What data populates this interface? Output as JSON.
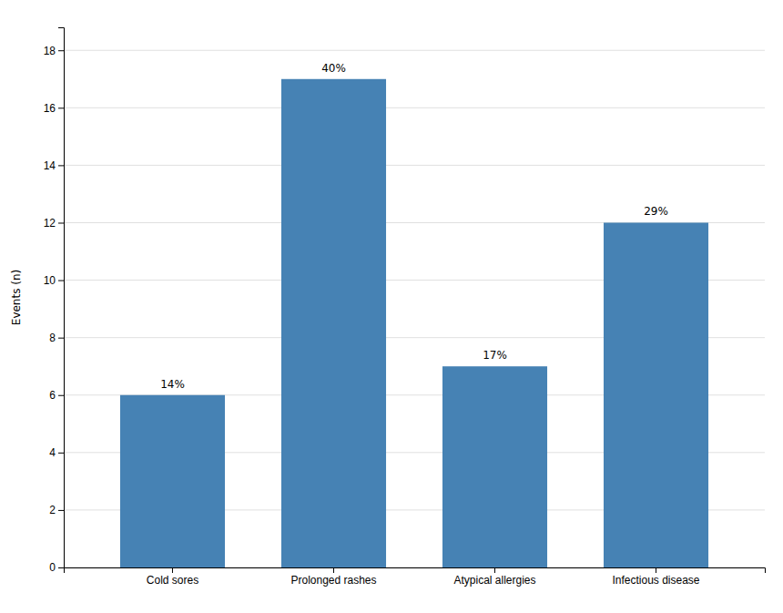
{
  "chart_data": {
    "type": "bar",
    "categories": [
      "Cold sores",
      "Prolonged rashes",
      "Atypical allergies",
      "Infectious disease"
    ],
    "values": [
      6,
      17,
      7,
      12
    ],
    "annotations": [
      "14%",
      "40%",
      "17%",
      "29%"
    ],
    "ylabel": "Events (n)",
    "ylim": [
      0,
      18.8
    ],
    "yticks": [
      0,
      2,
      4,
      6,
      8,
      10,
      12,
      14,
      16,
      18
    ],
    "grid": true
  }
}
